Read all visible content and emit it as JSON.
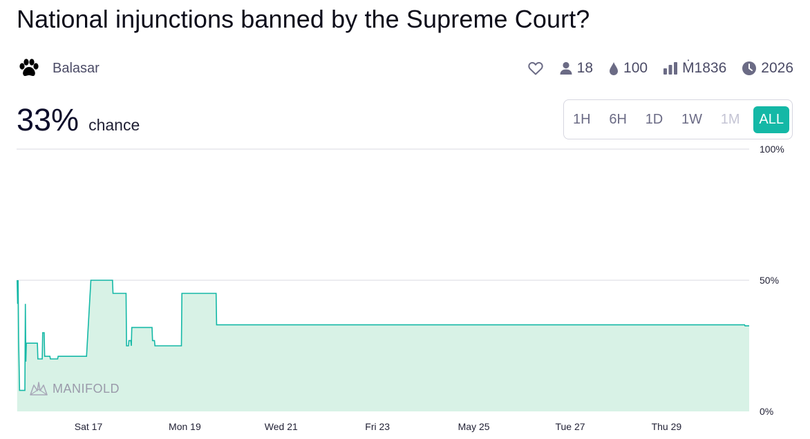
{
  "market": {
    "title": "National injunctions banned by the Supreme Court?",
    "author": "Balasar",
    "author_icon": "paw-icon",
    "probability": "33%",
    "probability_label": "chance"
  },
  "stats": {
    "favorite_icon": "heart-icon",
    "traders": "18",
    "traders_icon": "user-icon",
    "liquidity": "100",
    "liquidity_icon": "droplet-icon",
    "volume": "Ṁ1836",
    "volume_icon": "bar-chart-icon",
    "close_year": "2026",
    "close_icon": "clock-icon"
  },
  "time_range": {
    "options": [
      "1H",
      "6H",
      "1D",
      "1W",
      "1M",
      "ALL"
    ],
    "selected": "ALL",
    "disabled": [
      "1M"
    ]
  },
  "watermark": {
    "text": "MANIFOLD",
    "icon": "manifold-logo-icon"
  },
  "colors": {
    "line": "#14b8a6",
    "fill": "#d8f2e6",
    "accent": "#14b8a6",
    "grid": "#e6e6ec"
  },
  "chart_data": {
    "type": "area",
    "y_unit": "%",
    "ylim": [
      0,
      100
    ],
    "y_ticks": [
      "0%",
      "50%",
      "100%"
    ],
    "x_ticks": [
      "Sat 17",
      "Mon 19",
      "Wed 21",
      "Fri 23",
      "May 25",
      "Tue 27",
      "Thu 29"
    ],
    "grid": true,
    "series": [
      {
        "values_note_x": "days after Sat 17 (0 = Sat 17, 2 = Mon 19, ... 12 = Thu 29)",
        "points": [
          [
            -1.48,
            50
          ],
          [
            -1.47,
            41
          ],
          [
            -1.46,
            50
          ],
          [
            -1.45,
            28
          ],
          [
            -1.43,
            8
          ],
          [
            -1.32,
            8
          ],
          [
            -1.31,
            41
          ],
          [
            -1.3,
            19
          ],
          [
            -1.29,
            26
          ],
          [
            -1.06,
            26
          ],
          [
            -1.05,
            20
          ],
          [
            -0.96,
            20
          ],
          [
            -0.95,
            30
          ],
          [
            -0.92,
            30
          ],
          [
            -0.91,
            21
          ],
          [
            -0.8,
            21
          ],
          [
            -0.79,
            20
          ],
          [
            -0.64,
            20
          ],
          [
            -0.63,
            21
          ],
          [
            -0.04,
            21
          ],
          [
            0.05,
            50
          ],
          [
            0.5,
            50
          ],
          [
            0.51,
            45
          ],
          [
            0.78,
            45
          ],
          [
            0.79,
            25
          ],
          [
            0.83,
            25
          ],
          [
            0.84,
            27
          ],
          [
            0.88,
            27
          ],
          [
            0.89,
            25
          ],
          [
            0.9,
            32
          ],
          [
            1.32,
            32
          ],
          [
            1.33,
            27
          ],
          [
            1.37,
            27
          ],
          [
            1.38,
            25
          ],
          [
            1.93,
            25
          ],
          [
            1.94,
            45
          ],
          [
            2.65,
            45
          ],
          [
            2.66,
            33
          ],
          [
            13.62,
            33
          ],
          [
            13.63,
            32.6
          ],
          [
            13.82,
            32.6
          ]
        ]
      }
    ]
  }
}
